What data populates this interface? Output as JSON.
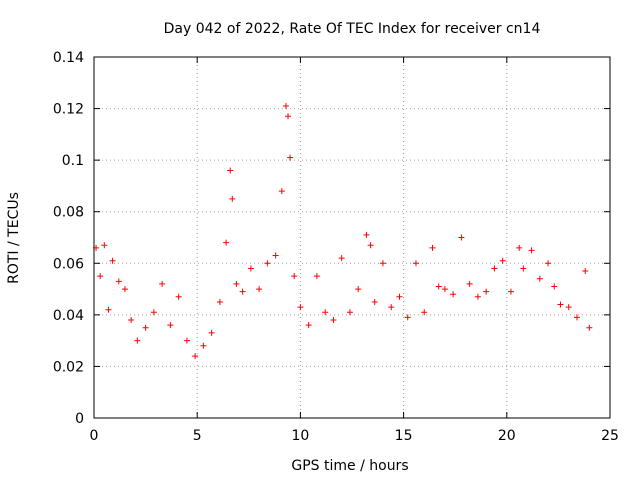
{
  "chart_data": {
    "type": "scatter",
    "title": "Day 042 of 2022, Rate Of TEC Index for receiver cn14",
    "xlabel": "GPS time / hours",
    "ylabel": "ROTI / TECUs",
    "xlim": [
      0,
      25
    ],
    "ylim": [
      0,
      0.14
    ],
    "x_ticks": [
      "0",
      "5",
      "10",
      "15",
      "20",
      "25"
    ],
    "y_ticks": [
      "0",
      "0.02",
      "0.04",
      "0.06",
      "0.08",
      "0.1",
      "0.12",
      "0.14"
    ],
    "grid": true,
    "marker": "+",
    "color": "#ff0000",
    "series": [
      {
        "name": "ROTI",
        "x": [
          0.1,
          0.3,
          0.5,
          0.7,
          0.9,
          1.2,
          1.5,
          1.8,
          2.1,
          2.5,
          2.9,
          3.3,
          3.7,
          4.1,
          4.5,
          4.9,
          5.3,
          5.7,
          6.1,
          6.4,
          6.6,
          6.7,
          6.9,
          7.2,
          7.6,
          8.0,
          8.4,
          8.8,
          9.1,
          9.3,
          9.4,
          9.5,
          9.7,
          10.0,
          10.4,
          10.8,
          11.2,
          11.6,
          12.0,
          12.4,
          12.8,
          13.2,
          13.4,
          13.6,
          14.0,
          14.4,
          14.8,
          15.2,
          15.6,
          16.0,
          16.4,
          16.7,
          17.0,
          17.4,
          17.8,
          18.2,
          18.6,
          19.0,
          19.4,
          19.8,
          20.2,
          20.6,
          20.8,
          21.2,
          21.6,
          22.0,
          22.3,
          22.6,
          23.0,
          23.4,
          23.8,
          24.0
        ],
        "y": [
          0.066,
          0.055,
          0.067,
          0.042,
          0.061,
          0.053,
          0.05,
          0.038,
          0.03,
          0.035,
          0.041,
          0.052,
          0.036,
          0.047,
          0.03,
          0.024,
          0.028,
          0.033,
          0.045,
          0.068,
          0.096,
          0.085,
          0.052,
          0.049,
          0.058,
          0.05,
          0.06,
          0.063,
          0.088,
          0.121,
          0.117,
          0.101,
          0.055,
          0.043,
          0.036,
          0.055,
          0.041,
          0.038,
          0.062,
          0.041,
          0.05,
          0.071,
          0.067,
          0.045,
          0.06,
          0.043,
          0.047,
          0.039,
          0.06,
          0.041,
          0.066,
          0.051,
          0.05,
          0.048,
          0.07,
          0.052,
          0.047,
          0.049,
          0.058,
          0.061,
          0.049,
          0.066,
          0.058,
          0.065,
          0.054,
          0.06,
          0.051,
          0.044,
          0.043,
          0.039,
          0.057,
          0.035
        ]
      }
    ]
  }
}
